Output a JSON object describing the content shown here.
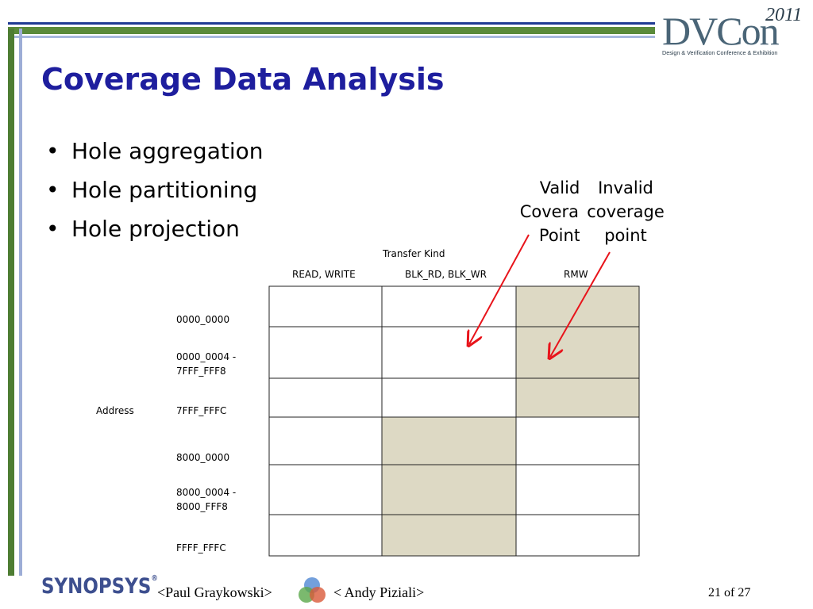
{
  "logo": {
    "name": "DVCon",
    "year": "2011",
    "tagline": "Design & Verification Conference & Exhibition"
  },
  "slide": {
    "title": "Coverage Data Analysis",
    "bullets": [
      "Hole aggregation",
      "Hole partitioning",
      "Hole projection"
    ],
    "callouts": {
      "valid_text": "Valid\nCoverage\nPoint",
      "invalid_text": "Invalid\ncoverage\npoint"
    }
  },
  "table": {
    "column_axis_label": "Transfer Kind",
    "columns": [
      "READ, WRITE",
      "BLK_RD, BLK_WR",
      "RMW"
    ],
    "row_axis_label": "Address",
    "rows": [
      {
        "label_line1": "0000_0000",
        "label_line2": "",
        "invalid": [
          false,
          false,
          true
        ]
      },
      {
        "label_line1": "0000_0004 -",
        "label_line2": "7FFF_FFF8",
        "invalid": [
          false,
          false,
          true
        ]
      },
      {
        "label_line1": "7FFF_FFFC",
        "label_line2": "",
        "invalid": [
          false,
          false,
          true
        ]
      },
      {
        "label_line1": "8000_0000",
        "label_line2": "",
        "invalid": [
          false,
          true,
          false
        ]
      },
      {
        "label_line1": "8000_0004 -",
        "label_line2": "8000_FFF8",
        "invalid": [
          false,
          true,
          false
        ]
      },
      {
        "label_line1": "FFFF_FFFC",
        "label_line2": "",
        "invalid": [
          false,
          true,
          false
        ]
      }
    ],
    "invalid_cell_color": "#ddd9c4",
    "arrow_color": "#e8141b"
  },
  "footer": {
    "company": "SYNOPSYS",
    "author1": "<Paul Graykowski>",
    "author2": "< Andy Piziali>",
    "page": "21 of 27"
  },
  "colors": {
    "title": "#1e1e9e",
    "frame_green": "#5a8a3a",
    "frame_blue": "#1f3a93"
  }
}
